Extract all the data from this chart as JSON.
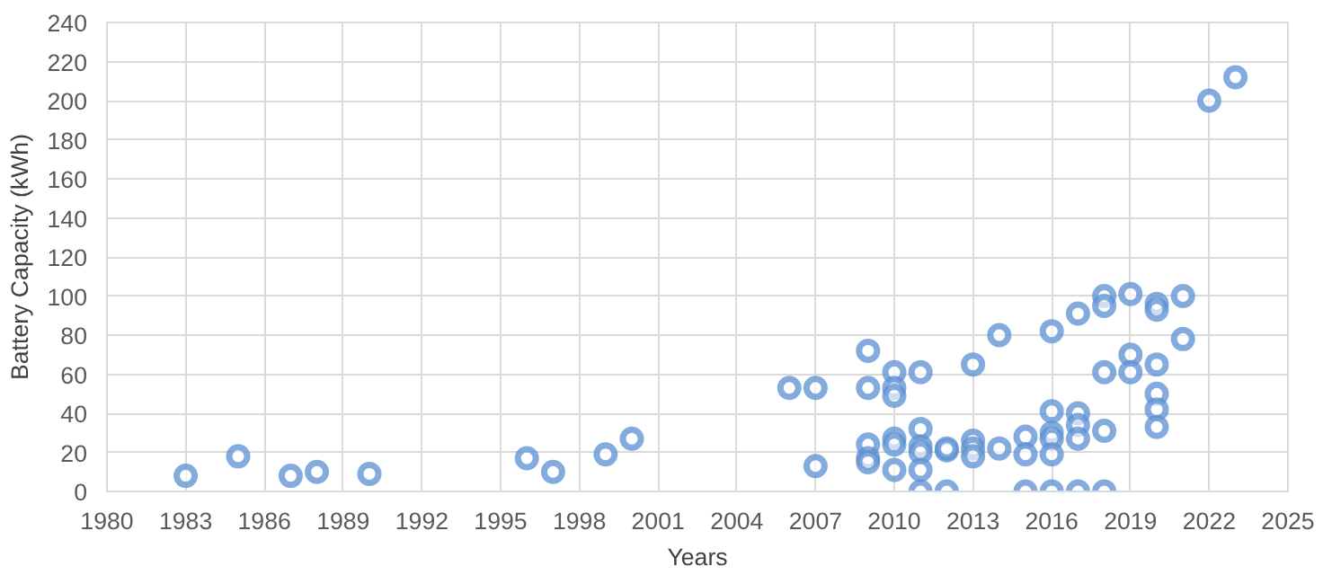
{
  "chart_data": {
    "type": "scatter",
    "xlabel": "Years",
    "ylabel": "Battery Capacity (kWh)",
    "xlim": [
      1980,
      2025
    ],
    "xticks": [
      1980,
      1983,
      1986,
      1989,
      1992,
      1995,
      1998,
      2001,
      2004,
      2007,
      2010,
      2013,
      2016,
      2019,
      2022,
      2025
    ],
    "ylim": [
      0,
      240
    ],
    "yticks": [
      0,
      20,
      40,
      60,
      80,
      100,
      120,
      140,
      160,
      180,
      200,
      220,
      240
    ],
    "grid": true,
    "marker": "circle",
    "series": [
      {
        "color": "#5b8fd1",
        "x": [
          1983,
          1985,
          1987,
          1988,
          1990,
          1996,
          1997,
          1999,
          2000,
          2006,
          2007,
          2007,
          2009,
          2009,
          2009,
          2009,
          2009,
          2010,
          2010,
          2010,
          2010,
          2010,
          2010,
          2011,
          2011,
          2011,
          2011,
          2011,
          2011,
          2012,
          2012,
          2012,
          2013,
          2013,
          2013,
          2013,
          2014,
          2014,
          2015,
          2015,
          2015,
          2016,
          2016,
          2016,
          2016,
          2016,
          2016,
          2017,
          2017,
          2017,
          2017,
          2017,
          2018,
          2018,
          2018,
          2018,
          2018,
          2019,
          2019,
          2019,
          2020,
          2020,
          2020,
          2020,
          2020,
          2020,
          2021,
          2021,
          2022,
          2023
        ],
        "values": [
          8,
          18,
          8,
          10,
          9,
          17,
          10,
          19,
          27,
          53,
          53,
          13,
          72,
          53,
          24,
          17,
          15,
          61,
          53,
          49,
          27,
          24,
          11,
          61,
          32,
          23,
          20,
          11,
          0,
          21,
          22,
          0,
          65,
          26,
          22,
          18,
          80,
          22,
          28,
          19,
          0,
          82,
          41,
          30,
          27,
          19,
          0,
          91,
          40,
          34,
          27,
          0,
          100,
          95,
          61,
          31,
          0,
          101,
          70,
          61,
          96,
          93,
          65,
          50,
          42,
          33,
          100,
          78,
          200,
          212
        ]
      }
    ]
  }
}
